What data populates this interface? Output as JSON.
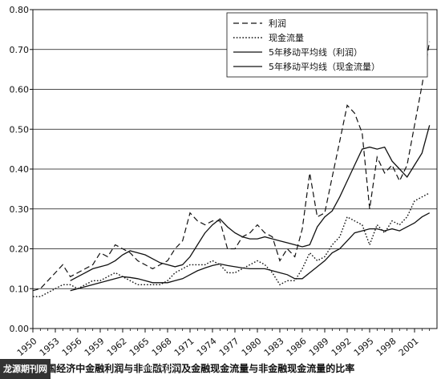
{
  "chart_data": {
    "type": "line",
    "x": [
      1950,
      1951,
      1952,
      1953,
      1954,
      1955,
      1956,
      1957,
      1958,
      1959,
      1960,
      1961,
      1962,
      1963,
      1964,
      1965,
      1966,
      1967,
      1968,
      1969,
      1970,
      1971,
      1972,
      1973,
      1974,
      1975,
      1976,
      1977,
      1978,
      1979,
      1980,
      1981,
      1982,
      1983,
      1984,
      1985,
      1986,
      1987,
      1988,
      1989,
      1990,
      1991,
      1992,
      1993,
      1994,
      1995,
      1996,
      1997,
      1998,
      1999,
      2000,
      2001,
      2002,
      2003
    ],
    "series": [
      {
        "name": "利润",
        "style": "dashed",
        "values": [
          0.095,
          0.1,
          0.12,
          0.14,
          0.16,
          0.13,
          0.14,
          0.15,
          0.16,
          0.19,
          0.18,
          0.21,
          0.2,
          0.19,
          0.17,
          0.16,
          0.15,
          0.16,
          0.17,
          0.2,
          0.22,
          0.29,
          0.27,
          0.26,
          0.27,
          0.27,
          0.2,
          0.2,
          0.23,
          0.24,
          0.26,
          0.24,
          0.23,
          0.17,
          0.2,
          0.18,
          0.25,
          0.39,
          0.28,
          0.29,
          0.38,
          0.47,
          0.56,
          0.54,
          0.49,
          0.3,
          0.43,
          0.39,
          0.41,
          0.37,
          0.41,
          0.51,
          0.61,
          0.72
        ]
      },
      {
        "name": "现金流量",
        "style": "dotted",
        "values": [
          0.08,
          0.08,
          0.09,
          0.1,
          0.11,
          0.11,
          0.1,
          0.11,
          0.12,
          0.12,
          0.13,
          0.14,
          0.13,
          0.12,
          0.11,
          0.11,
          0.11,
          0.11,
          0.12,
          0.14,
          0.15,
          0.16,
          0.16,
          0.16,
          0.17,
          0.16,
          0.14,
          0.14,
          0.15,
          0.16,
          0.17,
          0.16,
          0.14,
          0.11,
          0.12,
          0.12,
          0.15,
          0.19,
          0.17,
          0.18,
          0.21,
          0.23,
          0.28,
          0.27,
          0.26,
          0.21,
          0.26,
          0.24,
          0.27,
          0.26,
          0.28,
          0.32,
          0.33,
          0.34
        ]
      },
      {
        "name": "5年移动平均线（利润）",
        "style": "solid",
        "values": [
          null,
          null,
          null,
          null,
          null,
          0.12,
          0.13,
          0.14,
          0.15,
          0.155,
          0.16,
          0.17,
          0.185,
          0.195,
          0.19,
          0.185,
          0.175,
          0.165,
          0.16,
          0.155,
          0.16,
          0.18,
          0.21,
          0.24,
          0.26,
          0.275,
          0.255,
          0.24,
          0.23,
          0.225,
          0.225,
          0.23,
          0.225,
          0.22,
          0.215,
          0.21,
          0.205,
          0.21,
          0.255,
          0.28,
          0.295,
          0.33,
          0.37,
          0.41,
          0.45,
          0.455,
          0.45,
          0.455,
          0.42,
          0.4,
          0.38,
          0.41,
          0.44,
          0.51
        ]
      },
      {
        "name": "5年移动平均线（现金流量）",
        "style": "solid",
        "values": [
          null,
          null,
          null,
          null,
          null,
          0.095,
          0.1,
          0.105,
          0.11,
          0.115,
          0.12,
          0.125,
          0.13,
          0.128,
          0.125,
          0.12,
          0.115,
          0.115,
          0.115,
          0.12,
          0.125,
          0.135,
          0.145,
          0.152,
          0.158,
          0.162,
          0.158,
          0.155,
          0.152,
          0.15,
          0.15,
          0.15,
          0.145,
          0.14,
          0.135,
          0.125,
          0.125,
          0.14,
          0.155,
          0.17,
          0.19,
          0.2,
          0.22,
          0.24,
          0.245,
          0.25,
          0.25,
          0.245,
          0.25,
          0.245,
          0.255,
          0.265,
          0.28,
          0.29
        ]
      }
    ],
    "xticks": [
      1950,
      1953,
      1956,
      1959,
      1962,
      1965,
      1968,
      1971,
      1974,
      1977,
      1980,
      1983,
      1986,
      1989,
      1992,
      1995,
      1998,
      2001
    ],
    "yticks": [
      "0.00",
      "0.10",
      "0.20",
      "0.30",
      "0.40",
      "0.50",
      "0.60",
      "0.70",
      "0.80"
    ],
    "xlim": [
      1950,
      2004
    ],
    "ylim": [
      0,
      0.8
    ],
    "grid": "horizontal",
    "legend_position": "top-right",
    "title": "",
    "xlabel": "",
    "ylabel": ""
  },
  "caption": "美国经济中金融利润与非金融利润及金融现金流量与非金融现金流量的比率",
  "caption_prefix": "图",
  "watermark": "龙源期刊网",
  "watermark_url": "qikan.com"
}
